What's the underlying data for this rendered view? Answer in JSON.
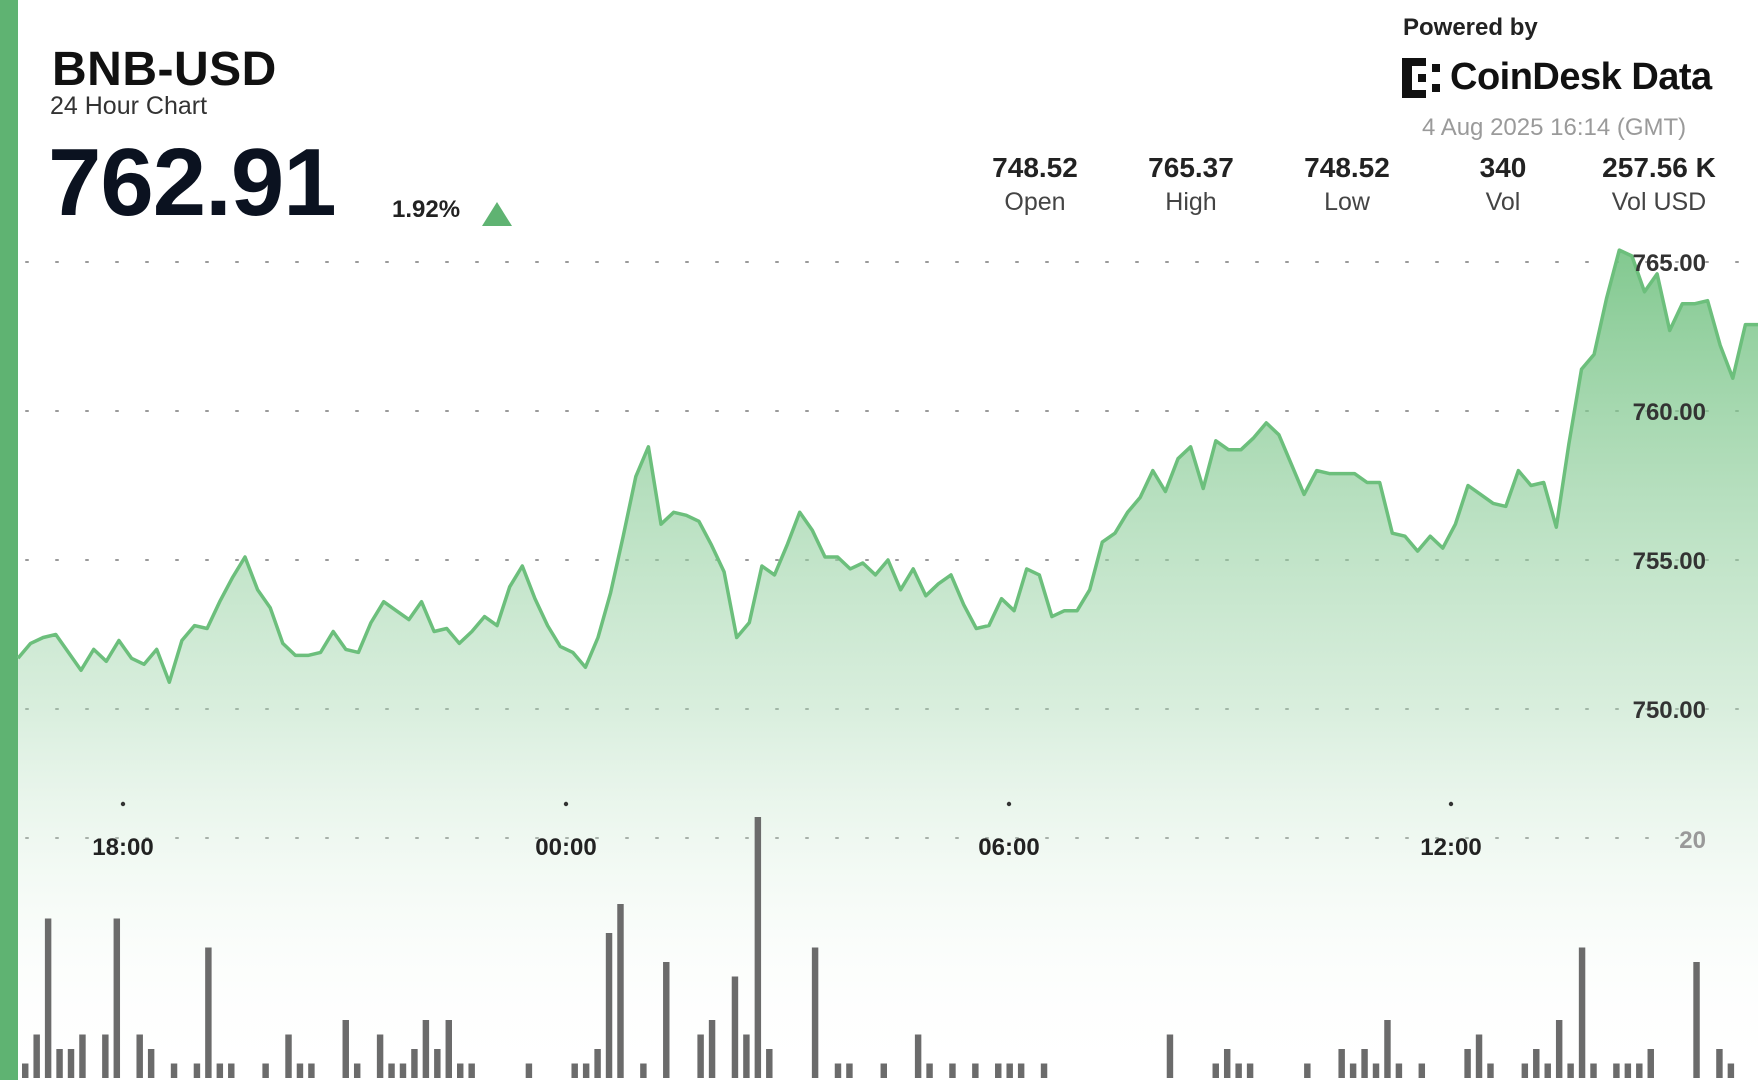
{
  "header": {
    "ticker": "BNB-USD",
    "subtitle": "24 Hour Chart",
    "price": "762.91",
    "change": "1.92%",
    "powered_by": "Powered by",
    "brand": "CoinDesk Data",
    "timestamp": "4 Aug 2025 16:14 (GMT)"
  },
  "stats": [
    {
      "value": "748.52",
      "label": "Open"
    },
    {
      "value": "765.37",
      "label": "High"
    },
    {
      "value": "748.52",
      "label": "Low"
    },
    {
      "value": "340",
      "label": "Vol"
    },
    {
      "value": "257.56 K",
      "label": "Vol USD"
    }
  ],
  "colors": {
    "accent": "#5fb372",
    "line": "#6cbf7c",
    "volume_bar": "#6b6b6b"
  },
  "chart_data": {
    "type": "area",
    "x_ticks": [
      "18:00",
      "00:00",
      "06:00",
      "12:00"
    ],
    "y_ticks": [
      "765.00",
      "760.00",
      "755.00",
      "750.00"
    ],
    "ylim": [
      746.5,
      766.0
    ],
    "price_series": [
      751.7,
      752.2,
      752.4,
      752.5,
      751.9,
      751.3,
      752.0,
      751.6,
      752.3,
      751.7,
      751.5,
      752.0,
      750.9,
      752.3,
      752.8,
      752.7,
      753.6,
      754.4,
      755.1,
      754.0,
      753.4,
      752.2,
      751.8,
      751.8,
      751.9,
      752.6,
      752.0,
      751.9,
      752.9,
      753.6,
      753.3,
      753.0,
      753.6,
      752.6,
      752.7,
      752.2,
      752.6,
      753.1,
      752.8,
      754.1,
      754.8,
      753.7,
      752.8,
      752.1,
      751.9,
      751.4,
      752.4,
      753.9,
      755.8,
      757.8,
      758.8,
      756.2,
      756.6,
      756.5,
      756.3,
      755.5,
      754.6,
      752.4,
      752.9,
      754.8,
      754.5,
      755.5,
      756.6,
      756.0,
      755.1,
      755.1,
      754.7,
      754.9,
      754.5,
      755.0,
      754.0,
      754.7,
      753.8,
      754.2,
      754.5,
      753.5,
      752.7,
      752.8,
      753.7,
      753.3,
      754.7,
      754.5,
      753.1,
      753.3,
      753.3,
      754.0,
      755.6,
      755.9,
      756.6,
      757.1,
      758.0,
      757.3,
      758.4,
      758.8,
      757.4,
      759.0,
      758.7,
      758.7,
      759.1,
      759.6,
      759.2,
      758.2,
      757.2,
      758.0,
      757.9,
      757.9,
      757.9,
      757.6,
      757.6,
      755.9,
      755.8,
      755.3,
      755.8,
      755.4,
      756.2,
      757.5,
      757.2,
      756.9,
      756.8,
      758.0,
      757.5,
      757.6,
      756.1,
      758.9,
      761.4,
      761.9,
      763.8,
      765.4,
      765.2,
      764.0,
      764.6,
      762.7,
      763.6,
      763.6,
      763.7,
      762.2,
      761.1,
      762.9,
      762.9
    ],
    "volume_max_label": "20",
    "volume_series": [
      1,
      3,
      11,
      2,
      2,
      3,
      0,
      3,
      11,
      0,
      3,
      2,
      0,
      1,
      0,
      1,
      9,
      1,
      1,
      0,
      0,
      1,
      0,
      3,
      1,
      1,
      0,
      0,
      4,
      1,
      0,
      3,
      1,
      1,
      2,
      4,
      2,
      4,
      1,
      1,
      0,
      0,
      0,
      0,
      1,
      0,
      0,
      0,
      1,
      1,
      2,
      10,
      12,
      0,
      1,
      0,
      8,
      0,
      0,
      3,
      4,
      0,
      7,
      3,
      18,
      2,
      0,
      0,
      0,
      9,
      0,
      1,
      1,
      0,
      0,
      1,
      0,
      0,
      3,
      1,
      0,
      1,
      0,
      1,
      0,
      1,
      1,
      1,
      0,
      1,
      0,
      0,
      0,
      0,
      0,
      0,
      0,
      0,
      0,
      0,
      3,
      0,
      0,
      0,
      1,
      2,
      1,
      1,
      0,
      0,
      0,
      0,
      1,
      0,
      0,
      2,
      1,
      2,
      1,
      4,
      1,
      0,
      1,
      0,
      0,
      0,
      2,
      3,
      1,
      0,
      0,
      1,
      2,
      1,
      4,
      1,
      9,
      1,
      0,
      1,
      1,
      1,
      2,
      0,
      0,
      0,
      8,
      0,
      2,
      1,
      0,
      0
    ]
  }
}
